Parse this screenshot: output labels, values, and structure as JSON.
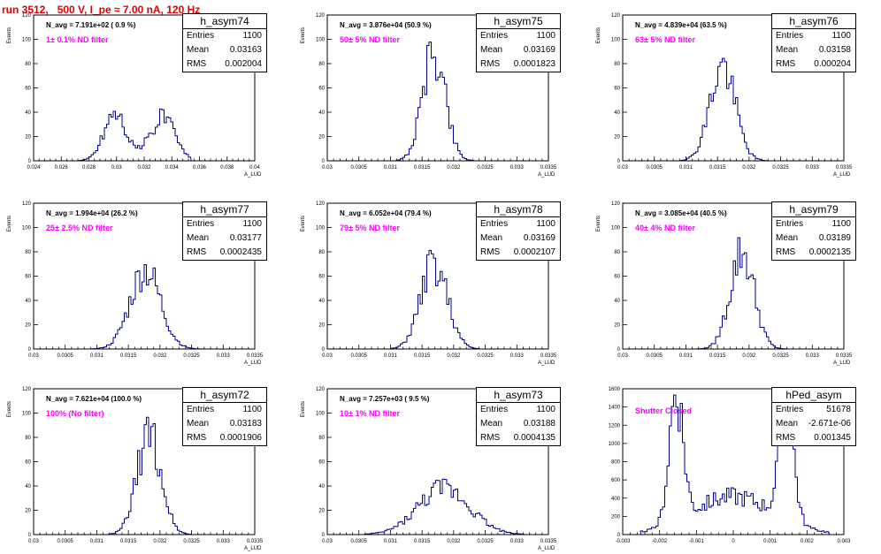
{
  "header": {
    "run_title": "run 3512,   500 V, I_pe ≈ 7.00 nA, 120 Hz"
  },
  "stats_labels": {
    "entries": "Entries",
    "mean": "Mean",
    "rms": "RMS"
  },
  "chart_data": [
    {
      "type": "histogram",
      "name": "h_asym74",
      "navg": "N_avg = 7.191e+02 ( 0.9 %)",
      "filter": "1± 0.1% ND filter",
      "entries": "1100",
      "mean": "0.03163",
      "rms": "0.002004",
      "ylabel": "Events",
      "xlabel": "A_LUD",
      "xlim": [
        0.024,
        0.04
      ],
      "ylim": [
        0,
        120
      ],
      "xticks": [
        0.024,
        0.026,
        0.028,
        0.03,
        0.032,
        0.034,
        0.036,
        0.038,
        0.04
      ],
      "xtick_labels": [
        "0.024",
        "0.026",
        "0.028",
        "0.03",
        "0.032",
        "0.034",
        "0.036",
        "0.038",
        "0.04"
      ],
      "yticks": [
        0,
        20,
        40,
        60,
        80,
        100,
        120
      ],
      "peaks": [
        [
          0.0299,
          0.0008,
          40
        ],
        [
          0.0333,
          0.0009,
          36
        ]
      ],
      "range": [
        0.0272,
        0.0354
      ],
      "seed": 74
    },
    {
      "type": "histogram",
      "name": "h_asym75",
      "navg": "N_avg = 3.876e+04 (50.9 %)",
      "filter": "50± 5% ND filter",
      "entries": "1100",
      "mean": "0.03169",
      "rms": "0.0001823",
      "ylabel": "Events",
      "xlabel": "A_LUD",
      "xlim": [
        0.03,
        0.0335
      ],
      "ylim": [
        0,
        120
      ],
      "xticks": [
        0.03,
        0.0305,
        0.031,
        0.0315,
        0.032,
        0.0325,
        0.033,
        0.0335
      ],
      "xtick_labels": [
        "0.03",
        "0.0305",
        "0.031",
        "0.0315",
        "0.032",
        "0.0325",
        "0.033",
        "0.0335"
      ],
      "yticks": [
        0,
        20,
        40,
        60,
        80,
        100,
        120
      ],
      "peaks": [
        [
          0.03169,
          0.00018,
          90
        ]
      ],
      "range": [
        0.0311,
        0.0323
      ],
      "seed": 75
    },
    {
      "type": "histogram",
      "name": "h_asym76",
      "navg": "N_avg = 4.839e+04 (63.5 %)",
      "filter": "63± 5% ND filter",
      "entries": "1100",
      "mean": "0.03158",
      "rms": "0.000204",
      "ylabel": "Events",
      "xlabel": "A_LUD",
      "xlim": [
        0.03,
        0.0335
      ],
      "ylim": [
        0,
        120
      ],
      "xticks": [
        0.03,
        0.0305,
        0.031,
        0.0315,
        0.032,
        0.0325,
        0.033,
        0.0335
      ],
      "xtick_labels": [
        "0.03",
        "0.0305",
        "0.031",
        "0.0315",
        "0.032",
        "0.0325",
        "0.033",
        "0.0335"
      ],
      "yticks": [
        0,
        20,
        40,
        60,
        80,
        100,
        120
      ],
      "peaks": [
        [
          0.03158,
          0.0002,
          78
        ]
      ],
      "range": [
        0.0309,
        0.0323
      ],
      "seed": 76
    },
    {
      "type": "histogram",
      "name": "h_asym77",
      "navg": "N_avg = 1.994e+04 (26.2 %)",
      "filter": "25± 2.5% ND filter",
      "entries": "1100",
      "mean": "0.03177",
      "rms": "0.0002435",
      "ylabel": "Events",
      "xlabel": "A_LUD",
      "xlim": [
        0.03,
        0.0335
      ],
      "ylim": [
        0,
        120
      ],
      "xticks": [
        0.03,
        0.0305,
        0.031,
        0.0315,
        0.032,
        0.0325,
        0.033,
        0.0335
      ],
      "xtick_labels": [
        "0.03",
        "0.0305",
        "0.031",
        "0.0315",
        "0.032",
        "0.0325",
        "0.033",
        "0.0335"
      ],
      "yticks": [
        0,
        20,
        40,
        60,
        80,
        100,
        120
      ],
      "peaks": [
        [
          0.03177,
          0.00024,
          65
        ]
      ],
      "range": [
        0.0309,
        0.0327
      ],
      "seed": 77
    },
    {
      "type": "histogram",
      "name": "h_asym78",
      "navg": "N_avg = 6.052e+04 (79.4 %)",
      "filter": "79± 5% ND filter",
      "entries": "1100",
      "mean": "0.03169",
      "rms": "0.0002107",
      "ylabel": "Events",
      "xlabel": "A_LUD",
      "xlim": [
        0.03,
        0.0335
      ],
      "ylim": [
        0,
        120
      ],
      "xticks": [
        0.03,
        0.0305,
        0.031,
        0.0315,
        0.032,
        0.0325,
        0.033,
        0.0335
      ],
      "xtick_labels": [
        "0.03",
        "0.0305",
        "0.031",
        "0.0315",
        "0.032",
        "0.0325",
        "0.033",
        "0.0335"
      ],
      "yticks": [
        0,
        20,
        40,
        60,
        80,
        100,
        120
      ],
      "peaks": [
        [
          0.03169,
          0.00021,
          70
        ]
      ],
      "range": [
        0.031,
        0.0324
      ],
      "seed": 78
    },
    {
      "type": "histogram",
      "name": "h_asym79",
      "navg": "N_avg = 3.085e+04 (40.5 %)",
      "filter": "40± 4% ND filter",
      "entries": "1100",
      "mean": "0.03189",
      "rms": "0.0002135",
      "ylabel": "Events",
      "xlabel": "A_LUD",
      "xlim": [
        0.03,
        0.0335
      ],
      "ylim": [
        0,
        120
      ],
      "xticks": [
        0.03,
        0.0305,
        0.031,
        0.0315,
        0.032,
        0.0325,
        0.033,
        0.0335
      ],
      "xtick_labels": [
        "0.03",
        "0.0305",
        "0.031",
        "0.0315",
        "0.032",
        "0.0325",
        "0.033",
        "0.0335"
      ],
      "yticks": [
        0,
        20,
        40,
        60,
        80,
        100,
        120
      ],
      "peaks": [
        [
          0.03189,
          0.00019,
          80
        ]
      ],
      "range": [
        0.031,
        0.0326
      ],
      "seed": 79
    },
    {
      "type": "histogram",
      "name": "h_asym72",
      "navg": "N_avg = 7.621e+04 (100.0 %)",
      "filter": "100% (No filter)",
      "entries": "1100",
      "mean": "0.03183",
      "rms": "0.0001906",
      "ylabel": "Events",
      "xlabel": "A_LUD",
      "xlim": [
        0.03,
        0.0335
      ],
      "ylim": [
        0,
        120
      ],
      "xticks": [
        0.03,
        0.0305,
        0.031,
        0.0315,
        0.032,
        0.0325,
        0.033,
        0.0335
      ],
      "xtick_labels": [
        "0.03",
        "0.0305",
        "0.031",
        "0.0315",
        "0.032",
        "0.0325",
        "0.033",
        "0.0335"
      ],
      "yticks": [
        0,
        20,
        40,
        60,
        80,
        100,
        120
      ],
      "peaks": [
        [
          0.03183,
          0.00019,
          82
        ]
      ],
      "range": [
        0.0312,
        0.0325
      ],
      "seed": 72
    },
    {
      "type": "histogram",
      "name": "h_asym73",
      "navg": "N_avg = 7.257e+03 ( 9.5 %)",
      "filter": "10± 1% ND filter",
      "entries": "1100",
      "mean": "0.03188",
      "rms": "0.0004135",
      "ylabel": "Events",
      "xlabel": "A_LUD",
      "xlim": [
        0.03,
        0.0335
      ],
      "ylim": [
        0,
        120
      ],
      "xticks": [
        0.03,
        0.0305,
        0.031,
        0.0315,
        0.032,
        0.0325,
        0.033,
        0.0335
      ],
      "xtick_labels": [
        "0.03",
        "0.0305",
        "0.031",
        "0.0315",
        "0.032",
        "0.0325",
        "0.033",
        "0.0335"
      ],
      "yticks": [
        0,
        20,
        40,
        60,
        80,
        100,
        120
      ],
      "peaks": [
        [
          0.03185,
          0.00041,
          38
        ]
      ],
      "range": [
        0.0306,
        0.0331
      ],
      "seed": 73
    },
    {
      "type": "histogram",
      "name": "hPed_asym",
      "navg": "",
      "filter": "Shutter Closed",
      "entries": "51678",
      "mean": "-2.671e-06",
      "rms": "0.001345",
      "ylabel": "",
      "xlabel": "",
      "xlim": [
        -0.003,
        0.003
      ],
      "ylim": [
        0,
        1600
      ],
      "xticks": [
        -0.003,
        -0.002,
        -0.001,
        0,
        0.001,
        0.002,
        0.003
      ],
      "xtick_labels": [
        "-0.003",
        "-0.002",
        "-0.001",
        "0",
        "0.001",
        "0.002",
        "0.003"
      ],
      "yticks": [
        0,
        200,
        400,
        600,
        800,
        1000,
        1200,
        1400,
        1600
      ],
      "peaks": [
        [
          -0.00155,
          0.00019,
          1450
        ],
        [
          0.00145,
          0.00019,
          1300
        ],
        [
          0.0,
          0.0011,
          420
        ]
      ],
      "range": [
        -0.0025,
        0.0026
      ],
      "seed": 90
    }
  ]
}
